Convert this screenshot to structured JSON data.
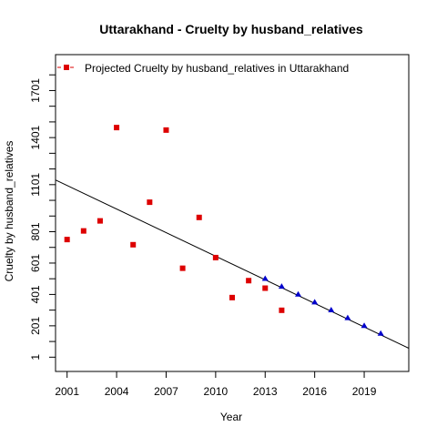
{
  "chart_data": {
    "type": "scatter",
    "title": "Uttarakhand  -  Cruelty by husband_relatives",
    "xlabel": "Year",
    "ylabel": "Cruelty by husband_relatives",
    "xlim": [
      2000.3,
      2021.7
    ],
    "ylim": [
      -90,
      1930
    ],
    "x_ticks": [
      2001,
      2004,
      2007,
      2010,
      2013,
      2016,
      2019
    ],
    "y_ticks": [
      1,
      201,
      401,
      601,
      801,
      1101,
      1401,
      1701
    ],
    "y_minor_ticks": [
      101,
      301,
      501,
      701,
      901,
      1001,
      1201,
      1301,
      1501,
      1601,
      1801
    ],
    "legend": {
      "position": "top-left",
      "label": "Projected  Cruelty by husband_relatives  in  Uttarakhand"
    },
    "series": [
      {
        "kind": "observed",
        "marker": "square",
        "color": "#dd0000",
        "points": [
          [
            2001,
            751
          ],
          [
            2002,
            806
          ],
          [
            2003,
            870
          ],
          [
            2004,
            1465
          ],
          [
            2005,
            718
          ],
          [
            2006,
            989
          ],
          [
            2007,
            1449
          ],
          [
            2008,
            568
          ],
          [
            2009,
            892
          ],
          [
            2010,
            636
          ],
          [
            2011,
            381
          ],
          [
            2012,
            489
          ],
          [
            2013,
            441
          ],
          [
            2014,
            300
          ]
        ]
      },
      {
        "kind": "projected",
        "marker": "triangle",
        "color": "#0000cc",
        "points": [
          [
            2013,
            502
          ],
          [
            2014,
            452
          ],
          [
            2015,
            402
          ],
          [
            2016,
            352
          ],
          [
            2017,
            302
          ],
          [
            2018,
            252
          ],
          [
            2019,
            202
          ],
          [
            2020,
            152
          ]
        ]
      }
    ],
    "trend_line": {
      "color": "#000000",
      "x": [
        2000.3,
        2021.7
      ],
      "y": [
        1131,
        58
      ]
    }
  }
}
